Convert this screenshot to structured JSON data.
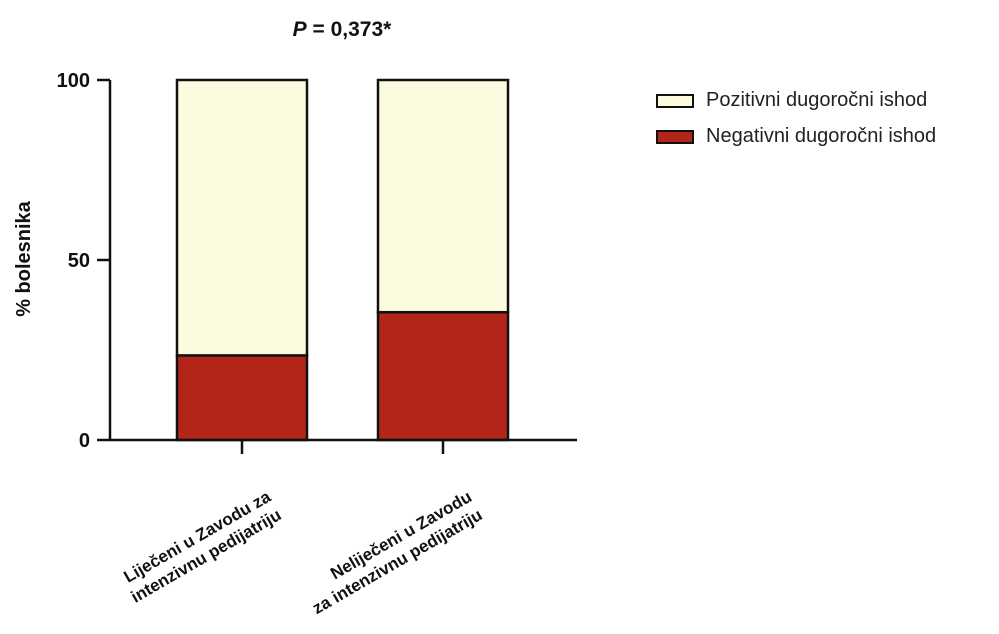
{
  "chart_data": {
    "type": "bar",
    "stacked": true,
    "title": "P = 0,373*",
    "title_parts": {
      "italic": "P",
      "rest": " = 0,373*"
    },
    "ylabel": "% bolesnika",
    "xlabel": "",
    "ylim": [
      0,
      100
    ],
    "yticks": [
      "0",
      "50",
      "100"
    ],
    "categories": [
      [
        "Liječeni u Zavodu za",
        "intenzivnu pedijatriju"
      ],
      [
        "Neliječeni u Zavodu",
        "za intenzivnu pedijatriju"
      ]
    ],
    "series": [
      {
        "name": "Negativni dugoročni ishod",
        "values": [
          23.5,
          35.5
        ],
        "color": "#b32519"
      },
      {
        "name": "Pozitivni dugoročni ishod",
        "values": [
          76.5,
          64.5
        ],
        "color": "#fdfbdf"
      }
    ],
    "legend_position": "top-right",
    "grid": false
  },
  "legend": [
    {
      "label": "Pozitivni dugoročni ishod",
      "color": "#fdfbdf"
    },
    {
      "label": "Negativni dugoročni ishod",
      "color": "#b32519"
    }
  ]
}
